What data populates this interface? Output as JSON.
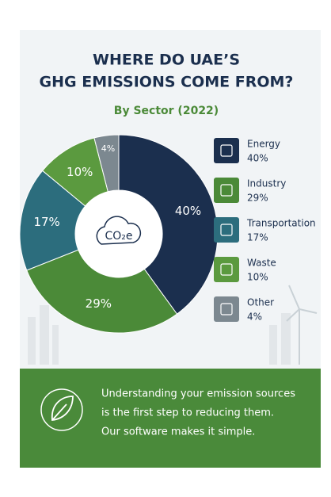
{
  "chart_data": {
    "type": "donut",
    "title_lines": [
      "WHERE DO UAE’S",
      "GHG EMISSIONS COME FROM?"
    ],
    "subtitle": "By Sector (2022)",
    "center_label": "CO₂e",
    "categories": [
      "Energy",
      "Industry",
      "Transportation",
      "Waste",
      "Other"
    ],
    "values": [
      40,
      29,
      17,
      10,
      4
    ],
    "value_labels": [
      "40%",
      "29%",
      "17%",
      "10%",
      "4%"
    ],
    "colors": [
      "#1b2f4e",
      "#4b8a38",
      "#2c6d7d",
      "#5b9a3f",
      "#7c8890"
    ],
    "footer_lines": [
      "Understanding your emission sources",
      "is the first step to reducing them.",
      "Our software makes it simple."
    ]
  }
}
